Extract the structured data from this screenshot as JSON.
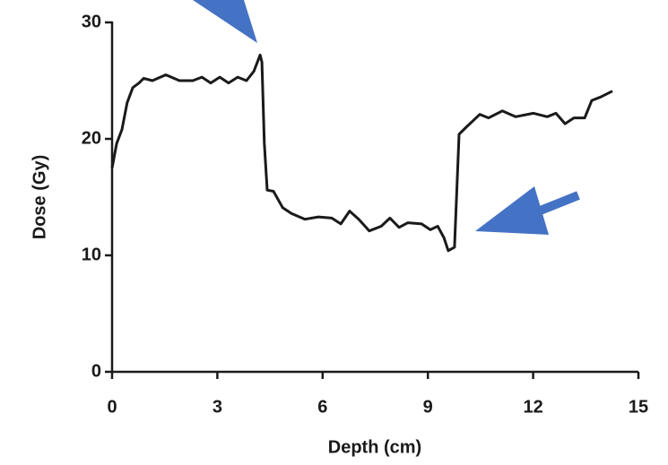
{
  "chart_data": {
    "type": "line",
    "x_label": "Depth (cm)",
    "y_label": "Dose (Gy)",
    "x": [
      0,
      0.13,
      0.28,
      0.43,
      0.59,
      0.77,
      0.9,
      1.15,
      1.53,
      1.92,
      2.3,
      2.56,
      2.81,
      3.07,
      3.32,
      3.58,
      3.83,
      4.04,
      4.22,
      4.27,
      4.34,
      4.42,
      4.6,
      4.86,
      5.11,
      5.5,
      5.88,
      6.26,
      6.52,
      6.77,
      7.03,
      7.33,
      7.67,
      7.92,
      8.18,
      8.43,
      8.82,
      9.07,
      9.28,
      9.46,
      9.58,
      9.76,
      9.89,
      10.09,
      10.48,
      10.73,
      11.12,
      11.5,
      12.01,
      12.4,
      12.65,
      12.91,
      13.16,
      13.47,
      13.67,
      13.93,
      14.26
    ],
    "values": [
      17.5,
      19.6,
      20.8,
      23.1,
      24.4,
      24.8,
      25.2,
      25.0,
      25.5,
      25.0,
      25.0,
      25.3,
      24.8,
      25.3,
      24.8,
      25.3,
      25.0,
      25.8,
      27.2,
      26.6,
      19.6,
      15.6,
      15.5,
      14.1,
      13.6,
      13.1,
      13.3,
      13.2,
      12.7,
      13.8,
      13.1,
      12.1,
      12.5,
      13.2,
      12.4,
      12.8,
      12.7,
      12.2,
      12.5,
      11.5,
      10.4,
      10.7,
      20.4,
      21.0,
      22.1,
      21.8,
      22.4,
      21.9,
      22.2,
      21.9,
      22.2,
      21.3,
      21.8,
      21.8,
      23.3,
      23.6,
      24.1
    ],
    "color": "#1a1a1a",
    "xlim": [
      0,
      15
    ],
    "xticks": [
      0,
      3,
      6,
      9,
      12,
      15
    ],
    "ylim": [
      0,
      30
    ],
    "yticks": [
      0,
      10,
      20,
      30
    ]
  }
}
